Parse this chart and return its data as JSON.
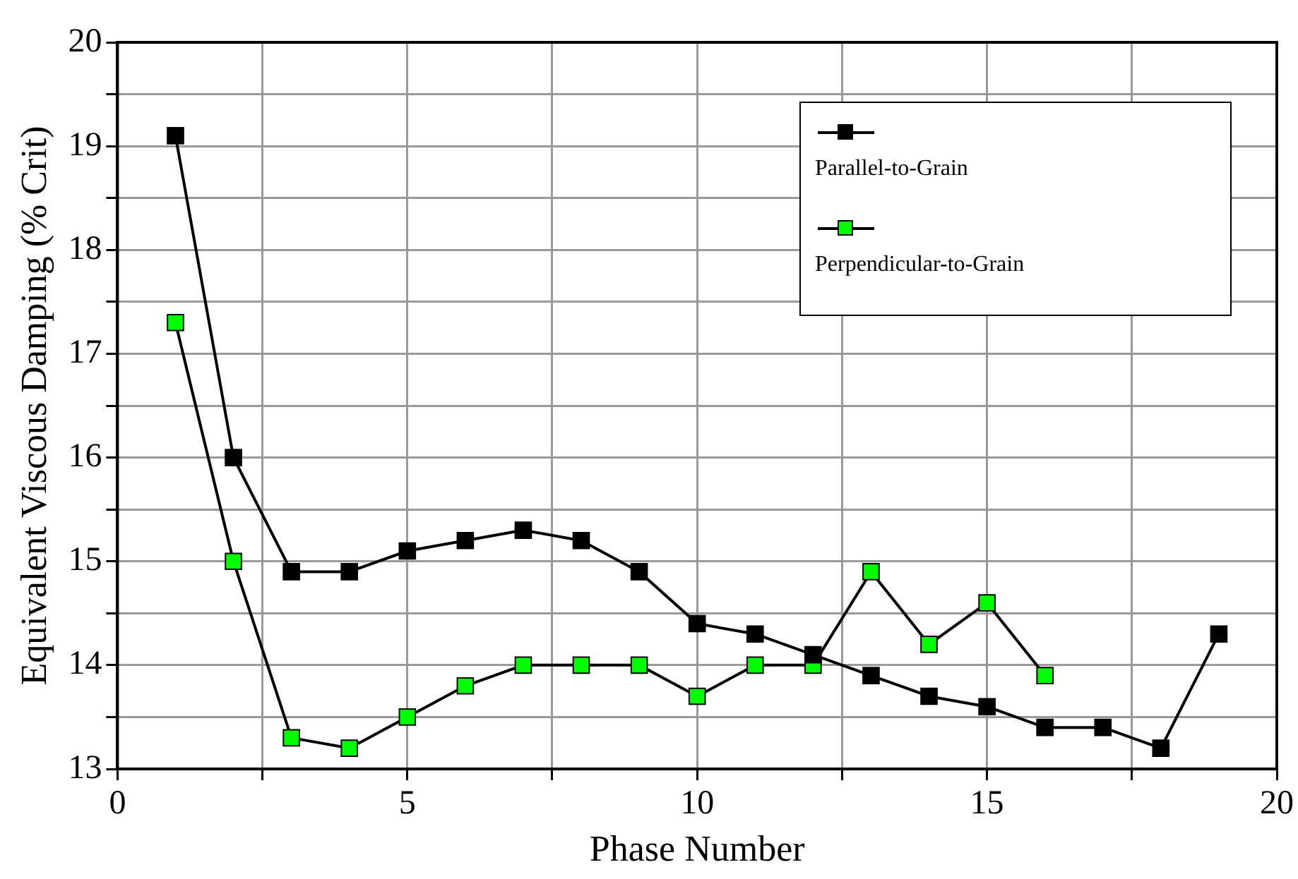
{
  "chart_data": {
    "type": "line",
    "xlabel": "Phase Number",
    "ylabel": "Equivalent Viscous Damping (% Crit)",
    "xlim": [
      0,
      20
    ],
    "xticks": [
      0,
      {
        "value": 2.5,
        "label": null
      },
      5,
      {
        "value": 7.5,
        "label": null
      },
      10,
      {
        "value": 12.5,
        "label": null
      },
      15,
      {
        "value": 17.5,
        "label": null
      },
      20
    ],
    "ylim": [
      13,
      20
    ],
    "yticks": [
      13,
      {
        "value": 13.5,
        "label": null
      },
      14,
      {
        "value": 14.5,
        "label": null
      },
      15,
      {
        "value": 15.5,
        "label": null
      },
      16,
      {
        "value": 16.5,
        "label": null
      },
      17,
      {
        "value": 17.5,
        "label": null
      },
      18,
      {
        "value": 18.5,
        "label": null
      },
      19,
      {
        "value": 19.5,
        "label": null
      },
      20
    ],
    "grid": true,
    "legend": "top right",
    "marker": "square",
    "line_style": "solid",
    "series": [
      {
        "name": "Parallel-to-Grain",
        "color": "#000000",
        "x": [
          1,
          2,
          3,
          4,
          5,
          6,
          7,
          8,
          9,
          10,
          11,
          12,
          13,
          14,
          15,
          16,
          17,
          18,
          19
        ],
        "values": [
          19.1,
          16.0,
          14.9,
          14.9,
          15.1,
          15.2,
          15.3,
          15.2,
          14.9,
          14.4,
          14.3,
          14.1,
          13.9,
          13.7,
          13.6,
          13.4,
          13.4,
          13.2,
          14.3
        ]
      },
      {
        "name": "Perpendicular-to-Grain",
        "color": "#00ff00",
        "x": [
          1,
          2,
          3,
          4,
          5,
          6,
          7,
          8,
          9,
          10,
          11,
          12,
          13,
          14,
          15,
          16
        ],
        "values": [
          17.3,
          15.0,
          13.3,
          13.2,
          13.5,
          13.8,
          14.0,
          14.0,
          14.0,
          13.7,
          14.0,
          14.0,
          14.9,
          14.2,
          14.6,
          13.9
        ]
      }
    ]
  }
}
